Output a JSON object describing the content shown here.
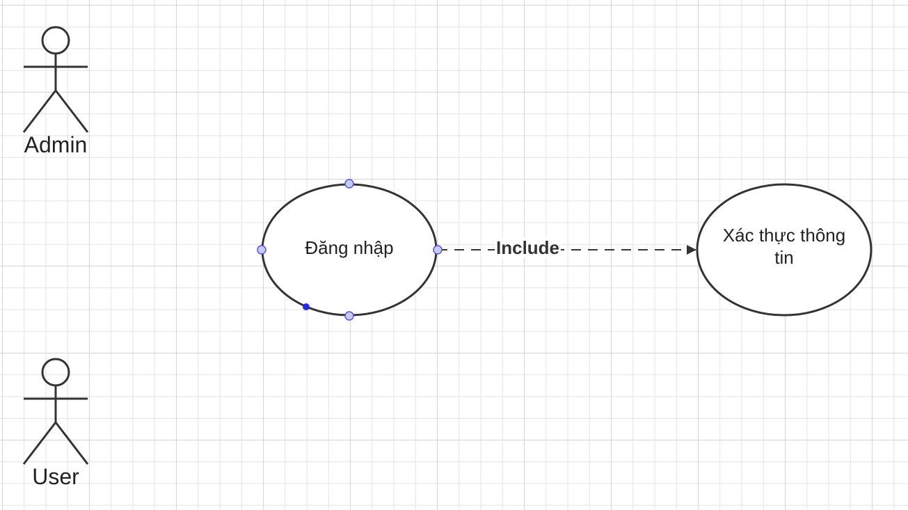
{
  "actors": [
    {
      "id": "admin",
      "label": "Admin"
    },
    {
      "id": "user",
      "label": "User"
    }
  ],
  "use_cases": [
    {
      "id": "dang-nhap",
      "label": "Đăng nhập",
      "selected": true
    },
    {
      "id": "xac-thuc",
      "label": "Xác thực thông tin",
      "selected": false
    }
  ],
  "relationships": [
    {
      "from": "dang-nhap",
      "to": "xac-thuc",
      "type": "dashed-arrow",
      "label": "Include"
    }
  ],
  "colors": {
    "stroke": "#333333",
    "handle_fill": "#c9c9f5",
    "handle_stroke": "#5555cc",
    "selection_dot": "#2b2bd6",
    "grid": "#e3e3e3"
  }
}
